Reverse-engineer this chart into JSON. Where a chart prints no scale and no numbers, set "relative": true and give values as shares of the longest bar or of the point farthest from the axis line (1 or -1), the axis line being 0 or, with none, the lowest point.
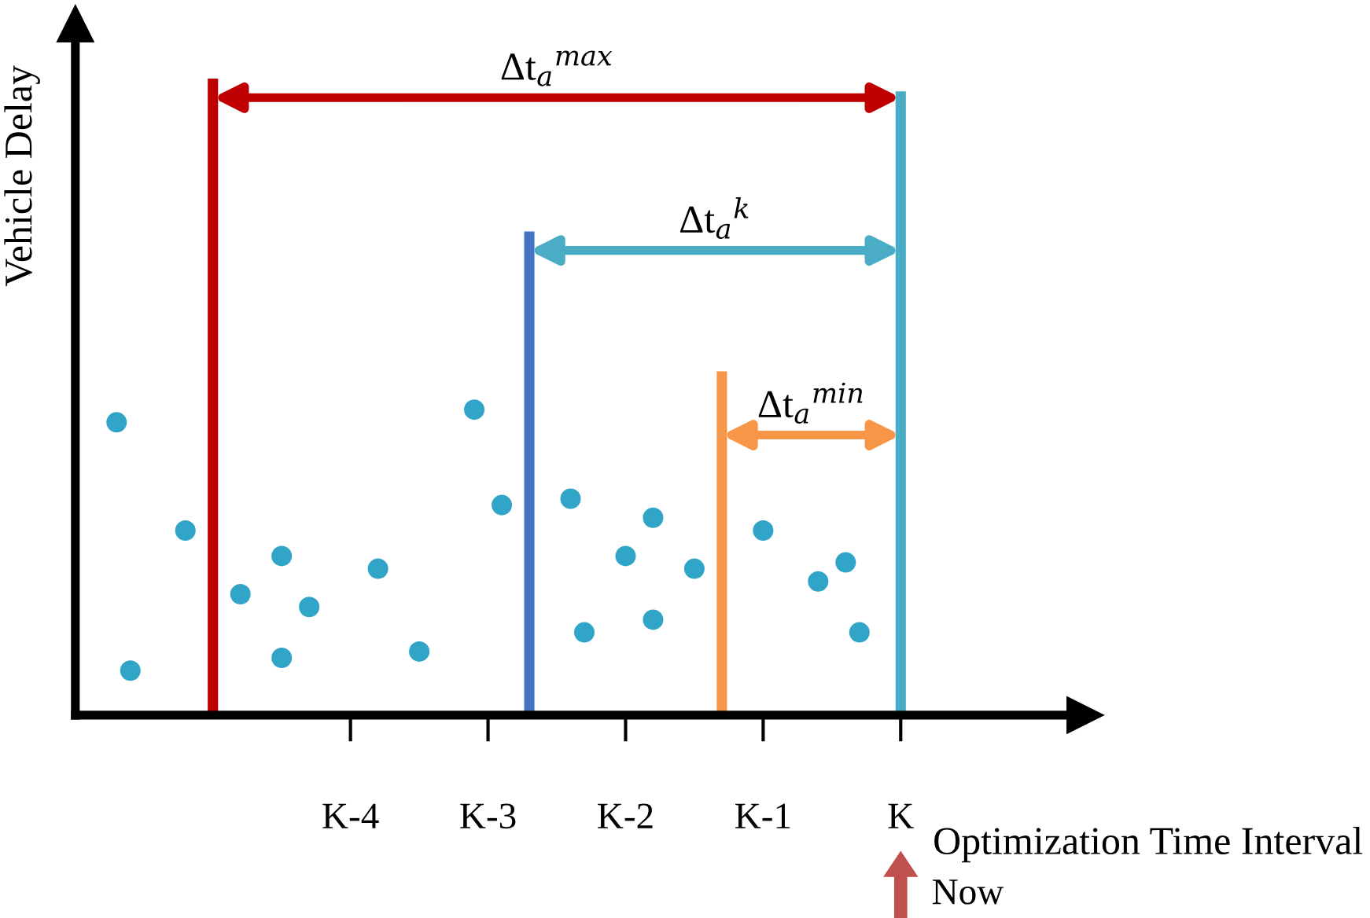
{
  "chart_data": {
    "type": "scatter",
    "relative": true,
    "xlabel": "Optimization Time Interval",
    "ylabel": "Vehicle Delay",
    "categories": [
      null,
      null,
      null,
      null,
      null,
      null,
      null,
      null,
      null,
      null,
      null,
      null,
      null,
      null,
      null,
      null,
      null,
      null,
      null,
      null,
      "K-4",
      null,
      null,
      null,
      null,
      null,
      null,
      null,
      null,
      null,
      "K-3",
      null,
      null,
      null,
      null,
      null,
      null,
      null,
      null,
      null,
      "K-2",
      null,
      null,
      null,
      null,
      null,
      null,
      null,
      null,
      null,
      "K-1",
      null,
      null,
      null,
      null,
      null,
      null,
      null,
      null,
      null,
      "K",
      null,
      null,
      null,
      null,
      null,
      null,
      null,
      null,
      null,
      null,
      null,
      null,
      null
    ],
    "tick_labels": "x",
    "marker": "circle",
    "series": [
      {
        "color": "#31a5c8",
        "values": [
          null,
          null,
          null,
          0.46,
          0.07,
          null,
          null,
          null,
          0.29,
          null,
          null,
          null,
          0.19,
          null,
          null,
          0.25,
          null,
          0.17,
          null,
          null,
          null,
          null,
          0.23,
          null,
          null,
          0.1,
          null,
          null,
          null,
          0.48,
          null,
          0.33,
          null,
          null,
          null,
          null,
          0.34,
          0.13,
          null,
          null,
          0.25,
          null,
          0.31,
          null,
          null,
          0.23,
          null,
          null,
          null,
          null,
          0.29,
          null,
          null,
          null,
          0.21,
          null,
          0.24,
          0.13,
          null,
          null,
          null,
          null,
          null,
          null,
          null,
          null,
          null,
          null,
          null,
          null,
          null,
          null,
          null,
          null
        ]
      },
      {
        "color": "#31a5c8",
        "values": [
          null,
          null,
          null,
          null,
          null,
          null,
          null,
          null,
          null,
          null,
          null,
          null,
          null,
          null,
          null,
          0.09,
          null,
          null,
          null,
          null,
          null,
          null,
          null,
          null,
          null,
          null,
          null,
          null,
          null,
          null,
          null,
          null,
          null,
          null,
          null,
          null,
          null,
          null,
          null,
          null,
          null,
          null,
          0.15,
          null,
          null,
          null,
          null,
          null,
          null,
          null,
          null,
          null,
          null,
          null,
          null,
          null,
          null,
          null,
          null,
          null,
          null,
          null,
          null,
          null,
          null,
          null,
          null,
          null,
          null,
          null,
          null,
          null,
          null,
          null
        ]
      },
      {
        "type": "bar",
        "values": [
          null,
          null,
          null,
          null,
          null,
          null,
          null,
          null,
          null,
          null,
          1.0,
          null,
          null,
          null,
          null,
          null,
          null,
          null,
          null,
          null,
          null,
          null,
          null,
          null,
          null,
          null,
          null,
          null,
          null,
          null,
          null,
          null,
          null,
          0.76,
          null,
          null,
          null,
          null,
          null,
          null,
          null,
          null,
          null,
          null,
          null,
          null,
          null,
          0.54,
          null,
          null,
          null,
          null,
          null,
          null,
          null,
          null,
          null,
          null,
          null,
          null,
          0.98,
          null,
          null,
          null,
          null,
          null,
          null,
          null,
          null,
          null,
          null,
          null,
          null,
          null
        ],
        "colors": [
          null,
          null,
          null,
          null,
          null,
          null,
          null,
          null,
          null,
          null,
          "#c00000",
          null,
          null,
          null,
          null,
          null,
          null,
          null,
          null,
          null,
          null,
          null,
          null,
          null,
          null,
          null,
          null,
          null,
          null,
          null,
          null,
          null,
          null,
          "#4472c4",
          null,
          null,
          null,
          null,
          null,
          null,
          null,
          null,
          null,
          null,
          null,
          null,
          null,
          "#f79646",
          null,
          null,
          null,
          null,
          null,
          null,
          null,
          null,
          null,
          null,
          null,
          null,
          "#4bacc6",
          null,
          null,
          null,
          null,
          null,
          null,
          null,
          null,
          null,
          null,
          null,
          null,
          null
        ]
      }
    ],
    "annotations": [
      "Δt$_{a}$$^{max}$",
      "Δt$_{a}$$^{k}$",
      "Δt$_{a}$$^{min}$",
      "Now"
    ]
  }
}
